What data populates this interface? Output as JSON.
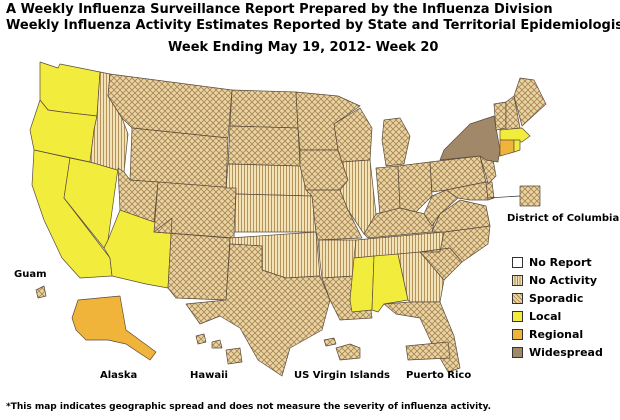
{
  "title_line1": "A Weekly Influenza Surveillance Report Prepared by the Influenza Division",
  "title_line2": "Weekly Influenza Activity Estimates Reported by State and Territorial Epidemiologists*",
  "week_label": "Week Ending May 19, 2012- Week 20",
  "footnote": "*This map indicates geographic spread and does not measure the severity of influenza activity.",
  "labels": {
    "dc": "District of Columbia",
    "guam": "Guam",
    "alaska": "Alaska",
    "hawaii": "Hawaii",
    "usvi": "US Virgin Islands",
    "puerto_rico": "Puerto Rico"
  },
  "legend": [
    {
      "label": "No Report",
      "pattern": "none",
      "color": "#ffffff"
    },
    {
      "label": "No Activity",
      "pattern": "stripes",
      "color": "#f2e2b8"
    },
    {
      "label": "Sporadic",
      "pattern": "crosshatch",
      "color": "#e9d4a4"
    },
    {
      "label": "Local",
      "pattern": "solid",
      "color": "#f2ec3c"
    },
    {
      "label": "Regional",
      "pattern": "solid",
      "color": "#f0b43a"
    },
    {
      "label": "Widespread",
      "pattern": "solid",
      "color": "#a08868"
    }
  ],
  "activity_by_state": {
    "Washington": "Local",
    "Oregon": "Local",
    "California": "Local",
    "Nevada": "Local",
    "Arizona": "Local",
    "Idaho": "No Activity",
    "Utah": "Sporadic",
    "Montana": "Sporadic",
    "Wyoming": "Sporadic",
    "Colorado": "Sporadic",
    "New Mexico": "Sporadic",
    "North Dakota": "Sporadic",
    "South Dakota": "Sporadic",
    "Nebraska": "No Activity",
    "Kansas": "No Activity",
    "Oklahoma": "No Activity",
    "Texas": "Sporadic",
    "Minnesota": "Sporadic",
    "Iowa": "Sporadic",
    "Missouri": "Sporadic",
    "Arkansas": "No Activity",
    "Louisiana": "Sporadic",
    "Wisconsin": "Sporadic",
    "Illinois": "No Activity",
    "Michigan": "Sporadic",
    "Indiana": "Sporadic",
    "Ohio": "Sporadic",
    "Kentucky": "Sporadic",
    "Tennessee": "No Activity",
    "Mississippi": "Local",
    "Alabama": "Local",
    "Georgia": "No Activity",
    "Florida": "Sporadic",
    "South Carolina": "Sporadic",
    "North Carolina": "Sporadic",
    "Virginia": "Sporadic",
    "West Virginia": "Sporadic",
    "Pennsylvania": "Sporadic",
    "New York": "Widespread",
    "Vermont": "Sporadic",
    "New Hampshire": "Sporadic",
    "Maine": "Sporadic",
    "Massachusetts": "Local",
    "Rhode Island": "Local",
    "Connecticut": "Regional",
    "New Jersey": "Sporadic",
    "Delaware": "Sporadic",
    "Maryland": "Sporadic",
    "District of Columbia": "Sporadic",
    "Alaska": "Regional",
    "Hawaii": "Sporadic",
    "Guam": "Sporadic",
    "Puerto Rico": "Sporadic",
    "US Virgin Islands": "Sporadic"
  }
}
